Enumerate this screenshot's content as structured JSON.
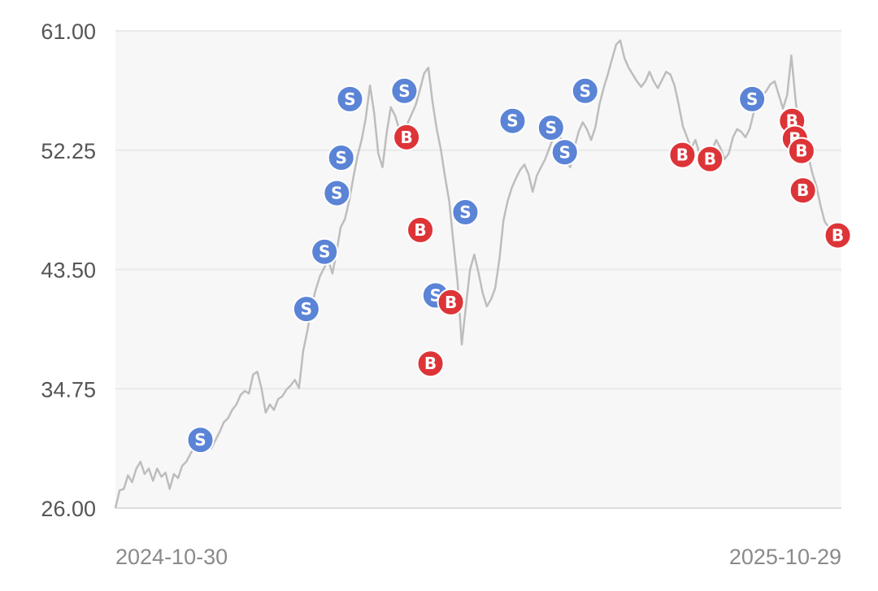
{
  "chart_data": {
    "type": "line",
    "ylim": [
      26.0,
      61.0
    ],
    "y_ticks": [
      "61.00",
      "52.25",
      "43.50",
      "34.75",
      "26.00"
    ],
    "y_tick_values": [
      61.0,
      52.25,
      43.5,
      34.75,
      26.0
    ],
    "x_start_label": "2024-10-30",
    "x_end_label": "2025-10-29",
    "grid": true,
    "colors": {
      "line": "#bdbdbd",
      "sell": "#5b84d6",
      "buy": "#dd3438",
      "plot_bg": "#f7f7f7",
      "grid": "#e9e9e9"
    },
    "series": [
      {
        "values": [
          26.0,
          27.3,
          27.4,
          28.4,
          27.9,
          28.9,
          29.4,
          28.5,
          28.9,
          28.0,
          28.9,
          28.3,
          28.6,
          27.4,
          28.5,
          28.2,
          29.1,
          29.4,
          30.0,
          30.5,
          30.7,
          31.0,
          31.2,
          30.4,
          31.0,
          31.6,
          32.3,
          32.6,
          33.2,
          33.6,
          34.3,
          34.6,
          34.4,
          35.8,
          36.0,
          34.8,
          33.0,
          33.6,
          33.2,
          34.0,
          34.2,
          34.7,
          35.0,
          35.4,
          34.8,
          37.5,
          39.0,
          40.8,
          42.0,
          43.0,
          43.6,
          44.2,
          43.2,
          44.8,
          46.6,
          47.2,
          48.5,
          50.2,
          51.8,
          53.0,
          54.6,
          57.0,
          55.0,
          52.0,
          51.0,
          53.5,
          55.4,
          54.8,
          53.8,
          53.2,
          54.2,
          54.9,
          55.6,
          56.7,
          57.9,
          58.3,
          55.8,
          53.8,
          52.3,
          50.3,
          48.5,
          45.5,
          42.6,
          38.0,
          40.8,
          43.5,
          44.6,
          43.3,
          41.8,
          40.8,
          41.3,
          42.1,
          44.2,
          47.1,
          48.5,
          49.5,
          50.2,
          50.8,
          51.2,
          50.5,
          49.2,
          50.4,
          51.0,
          51.6,
          52.4,
          53.2,
          54.5,
          52.6,
          51.4,
          51.0,
          52.4,
          53.6,
          54.3,
          53.8,
          53.0,
          53.9,
          55.6,
          56.8,
          57.8,
          58.9,
          60.0,
          60.3,
          59.0,
          58.3,
          57.8,
          57.3,
          56.9,
          57.3,
          58.0,
          57.3,
          56.8,
          57.4,
          58.0,
          57.8,
          57.0,
          55.6,
          54.0,
          53.2,
          52.4,
          53.0,
          52.0,
          51.6,
          51.8,
          52.3,
          53.0,
          52.4,
          51.6,
          52.0,
          53.2,
          53.8,
          53.6,
          53.2,
          53.8,
          55.0,
          55.6,
          56.2,
          56.6,
          57.1,
          57.3,
          56.3,
          55.3,
          56.3,
          59.2,
          56.0,
          53.4,
          52.4,
          51.9,
          50.6,
          49.6,
          48.2,
          47.0,
          46.6,
          46.4,
          45.8,
          45.9
        ]
      }
    ],
    "markers": [
      {
        "label": "S",
        "kind": "sell",
        "at": 0.117,
        "value": 31.0
      },
      {
        "label": "S",
        "kind": "sell",
        "at": 0.263,
        "value": 40.6
      },
      {
        "label": "S",
        "kind": "sell",
        "at": 0.288,
        "value": 44.8
      },
      {
        "label": "S",
        "kind": "sell",
        "at": 0.305,
        "value": 49.1
      },
      {
        "label": "S",
        "kind": "sell",
        "at": 0.311,
        "value": 51.7
      },
      {
        "label": "S",
        "kind": "sell",
        "at": 0.323,
        "value": 56.0
      },
      {
        "label": "S",
        "kind": "sell",
        "at": 0.398,
        "value": 56.6
      },
      {
        "label": "B",
        "kind": "buy",
        "at": 0.401,
        "value": 53.2
      },
      {
        "label": "B",
        "kind": "buy",
        "at": 0.42,
        "value": 46.4
      },
      {
        "label": "B",
        "kind": "buy",
        "at": 0.434,
        "value": 36.6
      },
      {
        "label": "S",
        "kind": "sell",
        "at": 0.441,
        "value": 41.6
      },
      {
        "label": "B",
        "kind": "buy",
        "at": 0.462,
        "value": 41.1
      },
      {
        "label": "S",
        "kind": "sell",
        "at": 0.482,
        "value": 47.7
      },
      {
        "label": "S",
        "kind": "sell",
        "at": 0.547,
        "value": 54.4
      },
      {
        "label": "S",
        "kind": "sell",
        "at": 0.6,
        "value": 53.9
      },
      {
        "label": "S",
        "kind": "sell",
        "at": 0.619,
        "value": 52.1
      },
      {
        "label": "S",
        "kind": "sell",
        "at": 0.647,
        "value": 56.6
      },
      {
        "label": "B",
        "kind": "buy",
        "at": 0.781,
        "value": 51.9
      },
      {
        "label": "B",
        "kind": "buy",
        "at": 0.819,
        "value": 51.6
      },
      {
        "label": "S",
        "kind": "sell",
        "at": 0.877,
        "value": 56.0
      },
      {
        "label": "B",
        "kind": "buy",
        "at": 0.932,
        "value": 54.4
      },
      {
        "label": "B",
        "kind": "buy",
        "at": 0.936,
        "value": 53.1
      },
      {
        "label": "B",
        "kind": "buy",
        "at": 0.945,
        "value": 52.2
      },
      {
        "label": "B",
        "kind": "buy",
        "at": 0.947,
        "value": 49.3
      },
      {
        "label": "B",
        "kind": "buy",
        "at": 0.995,
        "value": 46.0
      }
    ]
  }
}
